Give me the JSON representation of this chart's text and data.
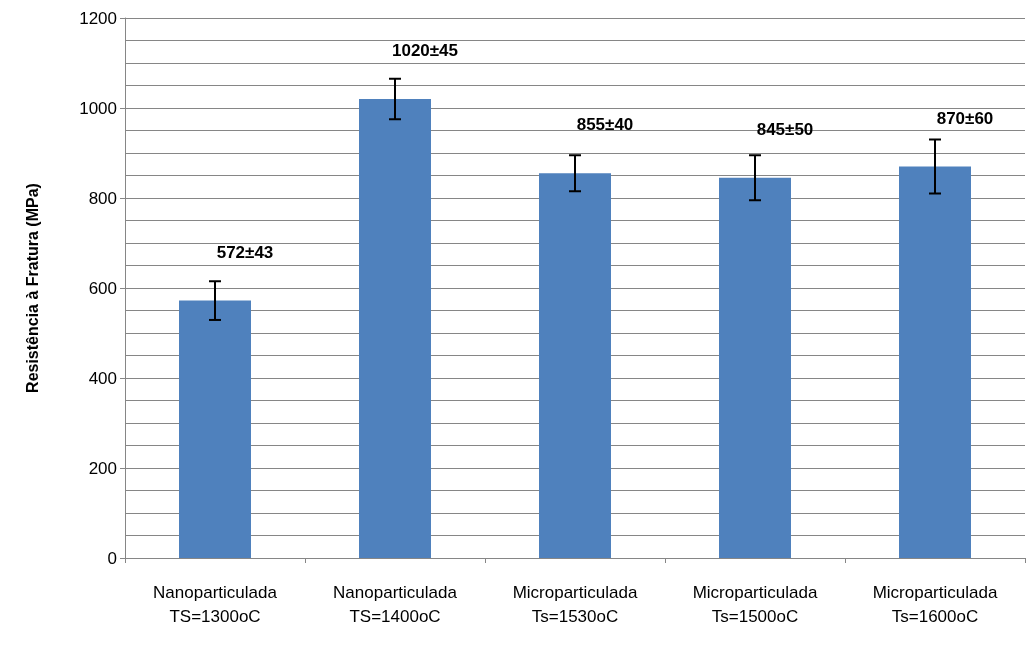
{
  "chart_data": {
    "type": "bar",
    "ylabel": "Resistência à Fratura (MPa)",
    "categories": [
      "Nanoparticulada\nTS=1300oC",
      "Nanoparticulada\nTS=1400oC",
      "Microparticulada\nTs=1530oC",
      "Microparticulada\nTs=1500oC",
      "Microparticulada\nTs=1600oC"
    ],
    "values": [
      572,
      1020,
      855,
      845,
      870
    ],
    "errors": [
      43,
      45,
      40,
      50,
      60
    ],
    "value_labels": [
      "572±43",
      "1020±45",
      "855±40",
      "845±50",
      "870±60"
    ],
    "color": "#4f81bd",
    "ylim": [
      0,
      1200
    ],
    "yticks": [
      0,
      {
        "value": 50,
        "label": null
      },
      200,
      {
        "value": 100,
        "label": null
      },
      {
        "value": 150,
        "label": null
      },
      {
        "value": 250,
        "label": null
      },
      {
        "value": 300,
        "label": null
      },
      {
        "value": 350,
        "label": null
      },
      400,
      {
        "value": 450,
        "label": null
      },
      {
        "value": 500,
        "label": null
      },
      {
        "value": 550,
        "label": null
      },
      600,
      {
        "value": 650,
        "label": null
      },
      {
        "value": 700,
        "label": null
      },
      {
        "value": 750,
        "label": null
      },
      800,
      {
        "value": 850,
        "label": null
      },
      {
        "value": 900,
        "label": null
      },
      {
        "value": 950,
        "label": null
      },
      1000,
      {
        "value": 1050,
        "label": null
      },
      {
        "value": 1100,
        "label": null
      },
      {
        "value": 1150,
        "label": null
      },
      1200
    ],
    "grid": "y"
  }
}
